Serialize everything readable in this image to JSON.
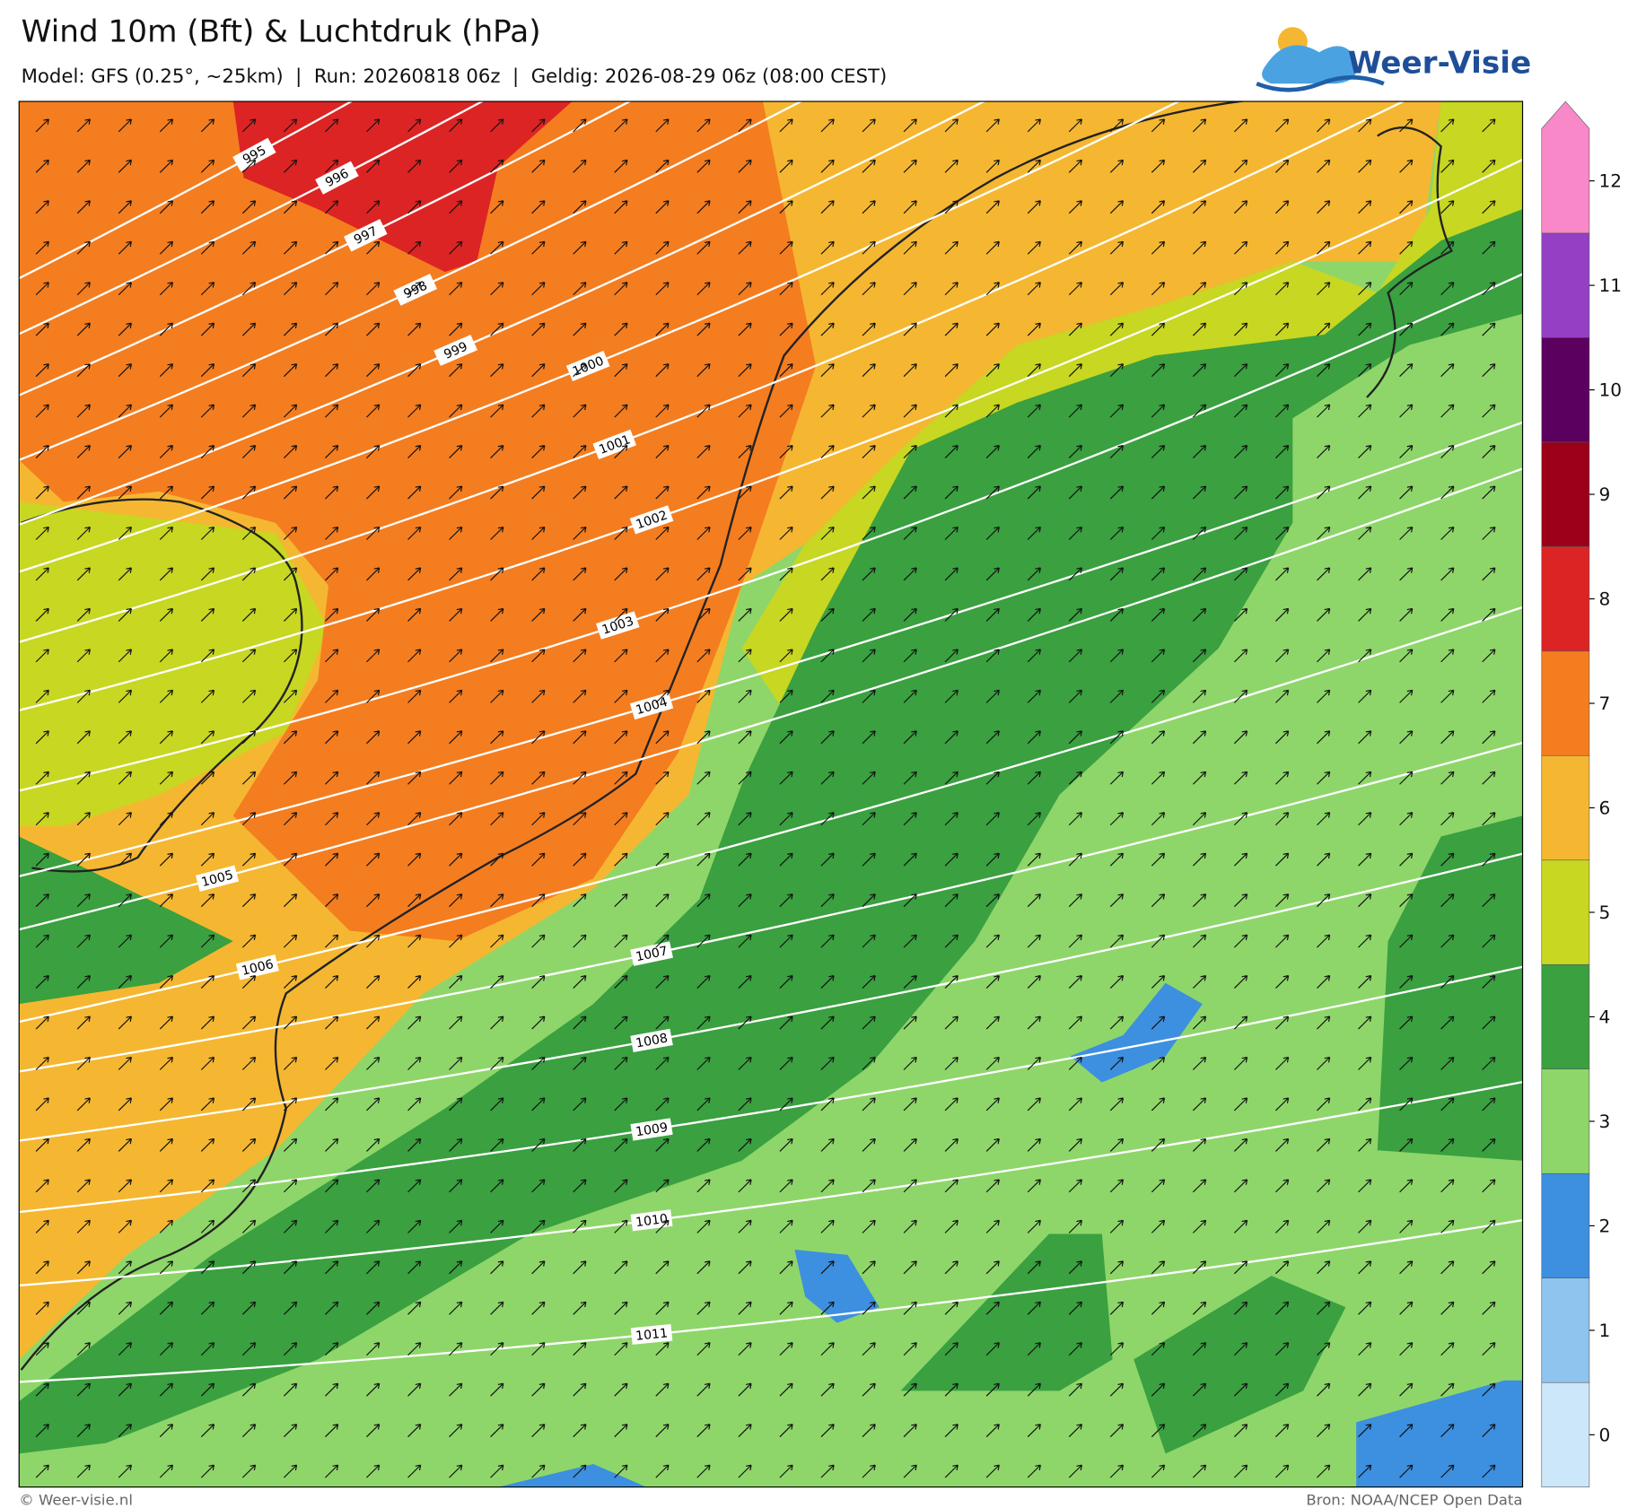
{
  "header": {
    "title": "Wind 10m (Bft) & Luchtdruk (hPa)",
    "subtitle": "Model: GFS (0.25°, ~25km)  |  Run: 20260818 06z  |  Geldig: 2026-08-29 06z (08:00 CEST)",
    "logo": "Weer-Visie"
  },
  "legend": {
    "levels": [
      0,
      1,
      2,
      3,
      4,
      5,
      6,
      7,
      8,
      9,
      10,
      11,
      12
    ],
    "colors": [
      "#cce6fa",
      "#8ec4ee",
      "#3d8fdf",
      "#8ed66a",
      "#3aa040",
      "#c7d722",
      "#f5b731",
      "#f47d20",
      "#dc2424",
      "#9b0018",
      "#5c0060",
      "#9440c4",
      "#f888c8"
    ]
  },
  "isobars": [
    995,
    996,
    997,
    998,
    999,
    1000,
    1001,
    1002,
    1003,
    1004,
    1005,
    1006,
    1007,
    1008,
    1009,
    1010,
    1011
  ],
  "footer": {
    "left": "© Weer-visie.nl",
    "right": "Bron: NOAA/NCEP Open Data"
  }
}
